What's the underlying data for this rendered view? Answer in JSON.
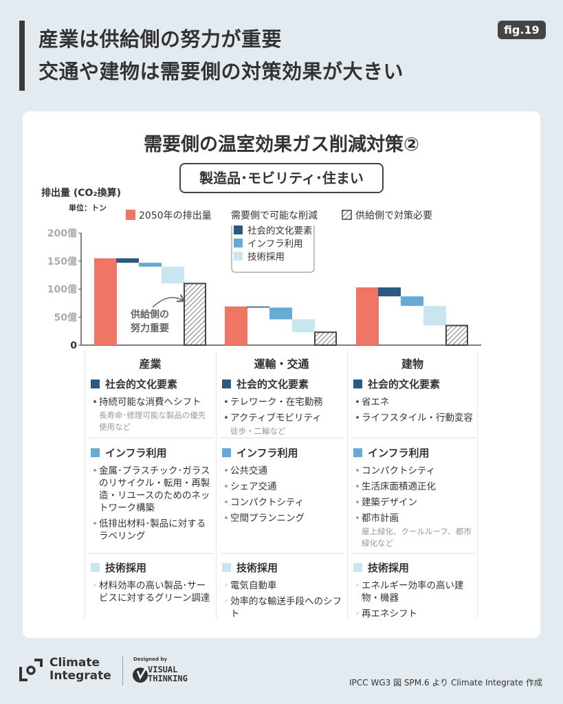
{
  "header": {
    "line1": "産業は供給側の努力が重要",
    "line2": "交通や建物は需要側の対策効果が大きい",
    "fig_label": "fig.19"
  },
  "card": {
    "title": "需要側の温室効果ガス削減対策②",
    "subtitle": "製造品･モビリティ･住まい"
  },
  "chart_data": {
    "type": "bar",
    "subtype": "waterfall",
    "ylabel": "排出量 (CO₂換算)",
    "unit": "単位：トン",
    "ylim": [
      0,
      200
    ],
    "yticks": [
      {
        "v": 0,
        "label": "0"
      },
      {
        "v": 50,
        "label": "50億"
      },
      {
        "v": 100,
        "label": "100億"
      },
      {
        "v": 150,
        "label": "150億"
      },
      {
        "v": 200,
        "label": "200億"
      }
    ],
    "categories": [
      "産業",
      "運輸・交通",
      "建物"
    ],
    "legend": {
      "emissions": "2050年の排出量",
      "demand": "需要側で可能な削減",
      "social": "社会的文化要素",
      "infra": "インフラ利用",
      "tech": "技術採用",
      "supply": "供給側で対策必要"
    },
    "colors": {
      "emissions": "#ef7565",
      "social": "#2b5a7e",
      "infra": "#67aad6",
      "tech": "#c9e6f0",
      "supply": "#444444"
    },
    "groups": [
      {
        "emissions": 155,
        "after_social": 147,
        "after_infra": 140,
        "after_tech": 110,
        "supply": 110
      },
      {
        "emissions": 69,
        "after_social": 67,
        "after_infra": 46,
        "after_tech": 23,
        "supply": 23
      },
      {
        "emissions": 103,
        "after_social": 87,
        "after_infra": 70,
        "after_tech": 35,
        "supply": 35
      }
    ],
    "annotation": [
      "供給側の",
      "努力重要"
    ]
  },
  "columns": [
    {
      "title": "産業",
      "social": {
        "label": "社会的文化要素",
        "items": [
          {
            "text": "持続可能な消費へシフト",
            "note": "長寿命･修理可能な製品の優先使用など"
          }
        ]
      },
      "infra": {
        "label": "インフラ利用",
        "items": [
          {
            "text": "金属･プラスチック･ガラスのリサイクル・転用・再製造・リユースのためのネットワーク構築"
          },
          {
            "text": "低排出材料･製品に対するラベリング"
          }
        ]
      },
      "tech": {
        "label": "技術採用",
        "items": [
          {
            "text": "材料効率の高い製品･サービスに対するグリーン調達"
          }
        ]
      }
    },
    {
      "title": "運輸・交通",
      "social": {
        "label": "社会的文化要素",
        "items": [
          {
            "text": "テレワーク・在宅勤務"
          },
          {
            "text": "アクティブモビリティ",
            "note": "徒歩・二輪など"
          }
        ]
      },
      "infra": {
        "label": "インフラ利用",
        "items": [
          {
            "text": "公共交通"
          },
          {
            "text": "シェア交通"
          },
          {
            "text": "コンパクトシティ"
          },
          {
            "text": "空間プランニング"
          }
        ]
      },
      "tech": {
        "label": "技術採用",
        "items": [
          {
            "text": "電気自動車"
          },
          {
            "text": "効率的な輸送手段へのシフト"
          }
        ]
      }
    },
    {
      "title": "建物",
      "social": {
        "label": "社会的文化要素",
        "items": [
          {
            "text": "省エネ"
          },
          {
            "text": "ライフスタイル・行動変容"
          }
        ]
      },
      "infra": {
        "label": "インフラ利用",
        "items": [
          {
            "text": "コンパクトシティ"
          },
          {
            "text": "生活床面積適正化"
          },
          {
            "text": "建築デザイン"
          },
          {
            "text": "都市計画",
            "note": "屋上緑化、クールルーフ、都市緑化など"
          }
        ]
      },
      "tech": {
        "label": "技術採用",
        "items": [
          {
            "text": "エネルギー効率の高い建物・機器"
          },
          {
            "text": "再エネシフト"
          }
        ]
      }
    }
  ],
  "footer": {
    "logo_text": "Climate Integrate",
    "designed_by": "Designed by",
    "vt_logo": "VISUAL THINKING",
    "source": "IPCC WG3 図 SPM.6 より Climate Integrate 作成"
  }
}
